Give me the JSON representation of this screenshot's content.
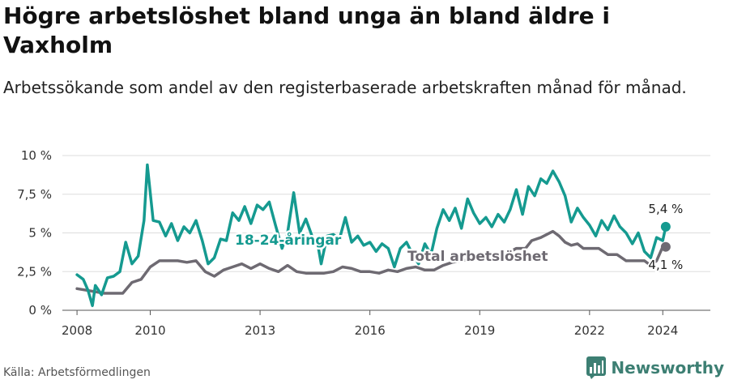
{
  "header": {
    "title": "Högre arbetslöshet bland unga än bland äldre i Vaxholm",
    "subtitle": "Arbetssökande som andel av den registerbaserade arbetskraften månad för månad."
  },
  "footer": {
    "source": "Källa: Arbetsförmedlingen",
    "brand": "Newsworthy",
    "brand_icon": "bar-chart-logo-icon"
  },
  "colors": {
    "youth": "#159a90",
    "total": "#6e6a72",
    "grid": "#dddddd",
    "text": "#333333"
  },
  "chart_data": {
    "type": "line",
    "x_unit": "year",
    "y_unit": "%",
    "ylim": [
      0,
      10
    ],
    "xlim": [
      2007.6,
      2025.3
    ],
    "y_ticks": [
      0,
      2.5,
      5,
      7.5,
      10
    ],
    "y_tick_labels": [
      "0 %",
      "2,5 %",
      "5 %",
      "7,5 %",
      "10 %"
    ],
    "x_ticks": [
      2008,
      2010,
      2013,
      2016,
      2019,
      2022,
      2024
    ],
    "x_tick_labels": [
      "2008",
      "2010",
      "2013",
      "2016",
      "2019",
      "2022",
      "2024"
    ],
    "grid": true,
    "series": [
      {
        "name": "18-24-åringar",
        "color": "#159a90",
        "end_label": "5,4 %",
        "points": [
          [
            2008.0,
            2.3
          ],
          [
            2008.17,
            2.0
          ],
          [
            2008.3,
            1.3
          ],
          [
            2008.42,
            0.3
          ],
          [
            2008.5,
            1.6
          ],
          [
            2008.67,
            1.0
          ],
          [
            2008.83,
            2.1
          ],
          [
            2009.0,
            2.2
          ],
          [
            2009.17,
            2.5
          ],
          [
            2009.33,
            4.4
          ],
          [
            2009.5,
            3.0
          ],
          [
            2009.67,
            3.5
          ],
          [
            2009.83,
            5.8
          ],
          [
            2009.92,
            9.4
          ],
          [
            2010.08,
            5.8
          ],
          [
            2010.25,
            5.7
          ],
          [
            2010.42,
            4.8
          ],
          [
            2010.58,
            5.6
          ],
          [
            2010.75,
            4.5
          ],
          [
            2010.92,
            5.4
          ],
          [
            2011.08,
            5.0
          ],
          [
            2011.25,
            5.8
          ],
          [
            2011.42,
            4.5
          ],
          [
            2011.58,
            3.0
          ],
          [
            2011.75,
            3.4
          ],
          [
            2011.92,
            4.6
          ],
          [
            2012.08,
            4.5
          ],
          [
            2012.25,
            6.3
          ],
          [
            2012.42,
            5.8
          ],
          [
            2012.58,
            6.7
          ],
          [
            2012.75,
            5.6
          ],
          [
            2012.92,
            6.8
          ],
          [
            2013.08,
            6.5
          ],
          [
            2013.25,
            7.0
          ],
          [
            2013.42,
            5.5
          ],
          [
            2013.6,
            4.0
          ],
          [
            2013.75,
            5.0
          ],
          [
            2013.92,
            7.6
          ],
          [
            2014.08,
            5.0
          ],
          [
            2014.25,
            5.9
          ],
          [
            2014.42,
            4.8
          ],
          [
            2014.58,
            4.2
          ],
          [
            2014.67,
            3.0
          ],
          [
            2014.83,
            4.8
          ],
          [
            2015.0,
            4.9
          ],
          [
            2015.17,
            4.6
          ],
          [
            2015.33,
            6.0
          ],
          [
            2015.5,
            4.4
          ],
          [
            2015.67,
            4.8
          ],
          [
            2015.83,
            4.2
          ],
          [
            2016.0,
            4.4
          ],
          [
            2016.17,
            3.8
          ],
          [
            2016.33,
            4.3
          ],
          [
            2016.5,
            4.0
          ],
          [
            2016.67,
            2.8
          ],
          [
            2016.83,
            4.0
          ],
          [
            2017.0,
            4.4
          ],
          [
            2017.17,
            3.6
          ],
          [
            2017.33,
            3.0
          ],
          [
            2017.5,
            4.3
          ],
          [
            2017.67,
            3.6
          ],
          [
            2017.83,
            5.3
          ],
          [
            2018.0,
            6.5
          ],
          [
            2018.17,
            5.8
          ],
          [
            2018.33,
            6.6
          ],
          [
            2018.5,
            5.3
          ],
          [
            2018.67,
            7.2
          ],
          [
            2018.83,
            6.3
          ],
          [
            2019.0,
            5.6
          ],
          [
            2019.17,
            6.0
          ],
          [
            2019.33,
            5.4
          ],
          [
            2019.5,
            6.2
          ],
          [
            2019.67,
            5.7
          ],
          [
            2019.83,
            6.5
          ],
          [
            2020.0,
            7.8
          ],
          [
            2020.17,
            6.2
          ],
          [
            2020.33,
            8.0
          ],
          [
            2020.5,
            7.4
          ],
          [
            2020.67,
            8.5
          ],
          [
            2020.83,
            8.2
          ],
          [
            2021.0,
            9.0
          ],
          [
            2021.17,
            8.3
          ],
          [
            2021.33,
            7.4
          ],
          [
            2021.5,
            5.7
          ],
          [
            2021.67,
            6.6
          ],
          [
            2021.83,
            6.0
          ],
          [
            2022.0,
            5.5
          ],
          [
            2022.17,
            4.8
          ],
          [
            2022.33,
            5.8
          ],
          [
            2022.5,
            5.2
          ],
          [
            2022.67,
            6.1
          ],
          [
            2022.83,
            5.4
          ],
          [
            2023.0,
            5.0
          ],
          [
            2023.17,
            4.3
          ],
          [
            2023.33,
            5.0
          ],
          [
            2023.5,
            3.8
          ],
          [
            2023.67,
            3.4
          ],
          [
            2023.83,
            4.7
          ],
          [
            2024.0,
            4.5
          ],
          [
            2024.08,
            5.4
          ]
        ]
      },
      {
        "name": "Total arbetslöshet",
        "color": "#6e6a72",
        "end_label": "4,1 %",
        "points": [
          [
            2008.0,
            1.4
          ],
          [
            2008.25,
            1.3
          ],
          [
            2008.5,
            1.2
          ],
          [
            2008.75,
            1.1
          ],
          [
            2009.0,
            1.1
          ],
          [
            2009.25,
            1.1
          ],
          [
            2009.5,
            1.8
          ],
          [
            2009.75,
            2.0
          ],
          [
            2010.0,
            2.8
          ],
          [
            2010.25,
            3.2
          ],
          [
            2010.5,
            3.2
          ],
          [
            2010.75,
            3.2
          ],
          [
            2011.0,
            3.1
          ],
          [
            2011.25,
            3.2
          ],
          [
            2011.5,
            2.5
          ],
          [
            2011.75,
            2.2
          ],
          [
            2012.0,
            2.6
          ],
          [
            2012.25,
            2.8
          ],
          [
            2012.5,
            3.0
          ],
          [
            2012.75,
            2.7
          ],
          [
            2013.0,
            3.0
          ],
          [
            2013.25,
            2.7
          ],
          [
            2013.5,
            2.5
          ],
          [
            2013.75,
            2.9
          ],
          [
            2014.0,
            2.5
          ],
          [
            2014.25,
            2.4
          ],
          [
            2014.5,
            2.4
          ],
          [
            2014.75,
            2.4
          ],
          [
            2015.0,
            2.5
          ],
          [
            2015.25,
            2.8
          ],
          [
            2015.5,
            2.7
          ],
          [
            2015.75,
            2.5
          ],
          [
            2016.0,
            2.5
          ],
          [
            2016.25,
            2.4
          ],
          [
            2016.5,
            2.6
          ],
          [
            2016.75,
            2.5
          ],
          [
            2017.0,
            2.7
          ],
          [
            2017.25,
            2.8
          ],
          [
            2017.5,
            2.6
          ],
          [
            2017.75,
            2.6
          ],
          [
            2018.0,
            2.9
          ],
          [
            2018.25,
            3.1
          ],
          [
            2018.5,
            3.2
          ],
          [
            2018.75,
            3.3
          ],
          [
            2019.0,
            3.4
          ],
          [
            2019.25,
            3.5
          ],
          [
            2019.5,
            3.6
          ],
          [
            2019.75,
            3.7
          ],
          [
            2020.0,
            4.0
          ],
          [
            2020.25,
            4.0
          ],
          [
            2020.42,
            4.5
          ],
          [
            2020.67,
            4.7
          ],
          [
            2020.83,
            4.9
          ],
          [
            2021.0,
            5.1
          ],
          [
            2021.17,
            4.8
          ],
          [
            2021.33,
            4.4
          ],
          [
            2021.5,
            4.2
          ],
          [
            2021.67,
            4.3
          ],
          [
            2021.83,
            4.0
          ],
          [
            2022.0,
            4.0
          ],
          [
            2022.25,
            4.0
          ],
          [
            2022.5,
            3.6
          ],
          [
            2022.75,
            3.6
          ],
          [
            2023.0,
            3.2
          ],
          [
            2023.25,
            3.2
          ],
          [
            2023.5,
            3.2
          ],
          [
            2023.67,
            2.9
          ],
          [
            2023.83,
            3.2
          ],
          [
            2024.0,
            4.1
          ],
          [
            2024.08,
            4.1
          ]
        ]
      }
    ]
  }
}
